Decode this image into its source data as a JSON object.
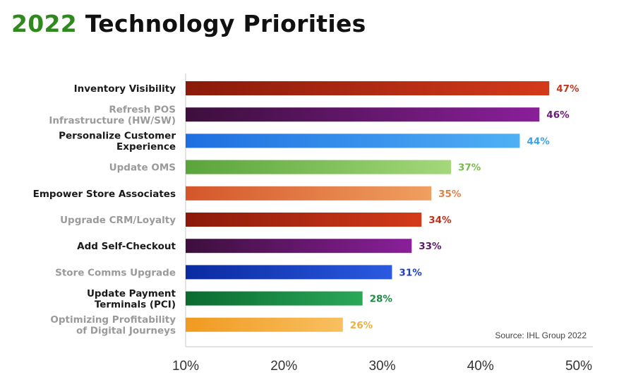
{
  "title": {
    "year": "2022",
    "rest": "Technology Priorities"
  },
  "source": "Source: IHL Group 2022",
  "chart_data": {
    "type": "bar",
    "orientation": "horizontal",
    "title": "2022 Technology Priorities",
    "xlabel": "",
    "ylabel": "",
    "xlim": [
      10,
      50
    ],
    "x_ticks": [
      "10%",
      "20%",
      "30%",
      "40%",
      "50%"
    ],
    "grid": false,
    "categories": [
      {
        "lines": [
          "Inventory Visibility"
        ],
        "label_color": "#1a1a1a",
        "value": 47,
        "value_label": "47%",
        "colors": [
          "#8a1a0a",
          "#d33a1a"
        ],
        "value_color": "#c8361c"
      },
      {
        "lines": [
          "Refresh POS",
          "Infrastructure (HW/SW)"
        ],
        "label_color": "#9a9a9a",
        "value": 46,
        "value_label": "46%",
        "colors": [
          "#3c0f3c",
          "#8a1f9a"
        ],
        "value_color": "#6a1a7a"
      },
      {
        "lines": [
          "Personalize Customer",
          "Experience"
        ],
        "label_color": "#1a1a1a",
        "value": 44,
        "value_label": "44%",
        "colors": [
          "#1e6fe0",
          "#4fb0f5"
        ],
        "value_color": "#3aa3ee"
      },
      {
        "lines": [
          "Update OMS"
        ],
        "label_color": "#9a9a9a",
        "value": 37,
        "value_label": "37%",
        "colors": [
          "#5aa43a",
          "#a4d87a"
        ],
        "value_color": "#7ab84e"
      },
      {
        "lines": [
          "Empower Store Associates"
        ],
        "label_color": "#1a1a1a",
        "value": 35,
        "value_label": "35%",
        "colors": [
          "#d4562a",
          "#f0a060"
        ],
        "value_color": "#e0804a"
      },
      {
        "lines": [
          "Upgrade CRM/Loyalty"
        ],
        "label_color": "#9a9a9a",
        "value": 34,
        "value_label": "34%",
        "colors": [
          "#8a1a0a",
          "#d33a1a"
        ],
        "value_color": "#c0301a"
      },
      {
        "lines": [
          "Add Self-Checkout"
        ],
        "label_color": "#1a1a1a",
        "value": 33,
        "value_label": "33%",
        "colors": [
          "#3c0f3c",
          "#8a1f9a"
        ],
        "value_color": "#5a1a6a"
      },
      {
        "lines": [
          "Store Comms Upgrade"
        ],
        "label_color": "#9a9a9a",
        "value": 31,
        "value_label": "31%",
        "colors": [
          "#0a2aa0",
          "#2a5ae0"
        ],
        "value_color": "#1e3fc4"
      },
      {
        "lines": [
          "Update Payment",
          "Terminals (PCI)"
        ],
        "label_color": "#1a1a1a",
        "value": 28,
        "value_label": "28%",
        "colors": [
          "#0a6a30",
          "#2aa858"
        ],
        "value_color": "#1e8a44"
      },
      {
        "lines": [
          "Optimizing Profitability",
          "of Digital Journeys"
        ],
        "label_color": "#9a9a9a",
        "value": 26,
        "value_label": "26%",
        "colors": [
          "#f09a20",
          "#f8c060"
        ],
        "value_color": "#f0b040"
      }
    ]
  }
}
